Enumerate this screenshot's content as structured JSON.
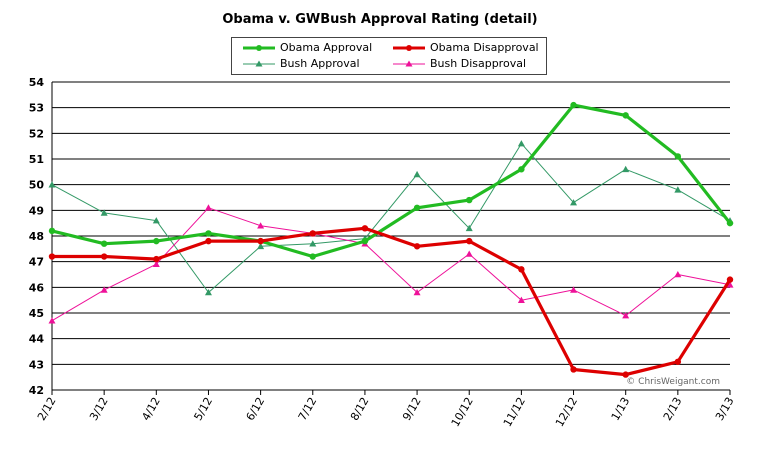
{
  "chart_data": {
    "type": "line",
    "title": "Obama v. GWBush Approval Rating (detail)",
    "xlabel": "",
    "ylabel": "",
    "ylim": [
      42,
      54
    ],
    "ytick_step": 1,
    "grid": true,
    "legend_position": "top-center",
    "categories": [
      "2/12",
      "3/12",
      "4/12",
      "5/12",
      "6/12",
      "7/12",
      "8/12",
      "9/12",
      "10/12",
      "11/12",
      "12/12",
      "1/13",
      "2/13",
      "3/13"
    ],
    "series": [
      {
        "name": "Obama Approval",
        "color": "#22bb22",
        "marker": "circle",
        "weight": "heavy",
        "values": [
          48.2,
          47.7,
          47.8,
          48.1,
          47.8,
          47.2,
          47.8,
          49.1,
          49.4,
          50.6,
          53.1,
          52.7,
          51.1,
          48.5
        ]
      },
      {
        "name": "Obama Disapproval",
        "color": "#dd0000",
        "marker": "circle",
        "weight": "heavy",
        "values": [
          47.2,
          47.2,
          47.1,
          47.8,
          47.8,
          48.1,
          48.3,
          47.6,
          47.8,
          46.7,
          42.8,
          42.6,
          43.1,
          46.3
        ]
      },
      {
        "name": "Bush Approval",
        "color": "#339966",
        "marker": "triangle",
        "weight": "thin",
        "values": [
          50.0,
          48.9,
          48.6,
          45.8,
          47.6,
          47.7,
          47.9,
          50.4,
          48.3,
          51.6,
          49.3,
          50.6,
          49.8,
          48.6
        ]
      },
      {
        "name": "Bush Disapproval",
        "color": "#ee1199",
        "marker": "triangle",
        "weight": "thin",
        "values": [
          44.7,
          45.9,
          46.9,
          49.1,
          48.4,
          48.1,
          47.7,
          45.8,
          47.3,
          45.5,
          45.9,
          44.9,
          46.5,
          46.1
        ]
      }
    ]
  },
  "credit": "© ChrisWeigant.com"
}
